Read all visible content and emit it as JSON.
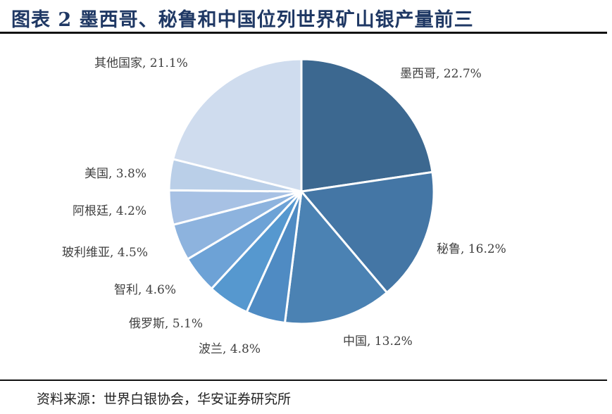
{
  "title": "图表 2 墨西哥、秘鲁和中国位列世界矿山银产量前三",
  "source": "资料来源：世界白银协会，华安证券研究所",
  "chart_data": {
    "type": "pie",
    "title": "图表 2 墨西哥、秘鲁和中国位列世界矿山银产量前三",
    "start": "12 o'clock, clockwise",
    "slices": [
      {
        "name": "墨西哥",
        "value": 22.7,
        "label": "墨西哥, 22.7%",
        "color": "#3c6890"
      },
      {
        "name": "秘鲁",
        "value": 16.2,
        "label": "秘鲁, 16.2%",
        "color": "#4476a5"
      },
      {
        "name": "中国",
        "value": 13.2,
        "label": "中国, 13.2%",
        "color": "#4b82b3"
      },
      {
        "name": "波兰",
        "value": 4.8,
        "label": "波兰, 4.8%",
        "color": "#4f8bc3"
      },
      {
        "name": "俄罗斯",
        "value": 5.1,
        "label": "俄罗斯, 5.1%",
        "color": "#5698cf"
      },
      {
        "name": "智利",
        "value": 4.6,
        "label": "智利, 4.6%",
        "color": "#6da2d6"
      },
      {
        "name": "玻利维亚",
        "value": 4.5,
        "label": "玻利维亚, 4.5%",
        "color": "#8db3de"
      },
      {
        "name": "阿根廷",
        "value": 4.2,
        "label": "阿根廷, 4.2%",
        "color": "#a7c1e4"
      },
      {
        "name": "美国",
        "value": 3.8,
        "label": "美国, 3.8%",
        "color": "#bacfe8"
      },
      {
        "name": "其他国家",
        "value": 21.1,
        "label": "其他国家, 21.1%",
        "color": "#cfdcee"
      }
    ]
  }
}
